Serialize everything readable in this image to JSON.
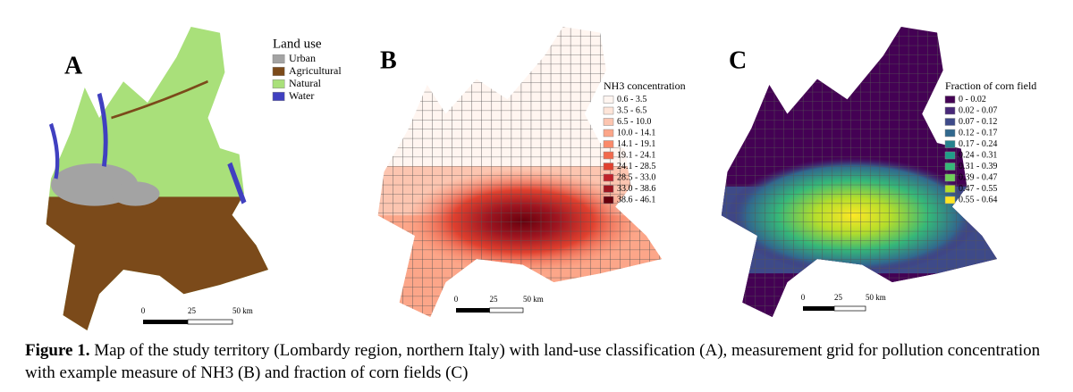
{
  "panels": [
    {
      "label": "A",
      "legend": {
        "title": "Land use",
        "items": [
          {
            "label": "Urban",
            "color": "#a3a3a3"
          },
          {
            "label": "Agricultural",
            "color": "#7b4a1a"
          },
          {
            "label": "Natural",
            "color": "#a9e07a"
          },
          {
            "label": "Water",
            "color": "#4040c0"
          }
        ]
      },
      "scale_bar": [
        "0",
        "25",
        "50 km"
      ]
    },
    {
      "label": "B",
      "legend": {
        "title": "NH3 concentration",
        "items": [
          {
            "label": "0.6 - 3.5",
            "color": "#fff5f0"
          },
          {
            "label": "3.5 - 6.5",
            "color": "#fee5d9"
          },
          {
            "label": "6.5 - 10.0",
            "color": "#fcc5b0"
          },
          {
            "label": "10.0 - 14.1",
            "color": "#fca689"
          },
          {
            "label": "14.1 - 19.1",
            "color": "#fb8a6a"
          },
          {
            "label": "19.1 - 24.1",
            "color": "#f26a4d"
          },
          {
            "label": "24.1 - 28.5",
            "color": "#e0412f"
          },
          {
            "label": "28.5 - 33.0",
            "color": "#c0222a"
          },
          {
            "label": "33.0 - 38.6",
            "color": "#9e1520"
          },
          {
            "label": "38.6 - 46.1",
            "color": "#67000d"
          }
        ]
      },
      "scale_bar": [
        "0",
        "25",
        "50 km"
      ]
    },
    {
      "label": "C",
      "legend": {
        "title": "Fraction of corn field",
        "items": [
          {
            "label": "0 - 0.02",
            "color": "#440154"
          },
          {
            "label": "0.02 - 0.07",
            "color": "#482878"
          },
          {
            "label": "0.07 - 0.12",
            "color": "#3e4a89"
          },
          {
            "label": "0.12 - 0.17",
            "color": "#31688e"
          },
          {
            "label": "0.17 - 0.24",
            "color": "#26828e"
          },
          {
            "label": "0.24 - 0.31",
            "color": "#1f9e89"
          },
          {
            "label": "0.31 - 0.39",
            "color": "#35b779"
          },
          {
            "label": "0.39 - 0.47",
            "color": "#6ece58"
          },
          {
            "label": "0.47 - 0.55",
            "color": "#b5de2b"
          },
          {
            "label": "0.55 - 0.64",
            "color": "#fde725"
          }
        ]
      },
      "scale_bar": [
        "0",
        "25",
        "50 km"
      ]
    }
  ],
  "caption": {
    "label": "Figure 1.",
    "text": "Map of the study territory (Lombardy region, northern Italy) with land-use classification (A), measurement grid for pollution concentration with example measure of NH3 (B) and fraction of corn fields (C)"
  }
}
